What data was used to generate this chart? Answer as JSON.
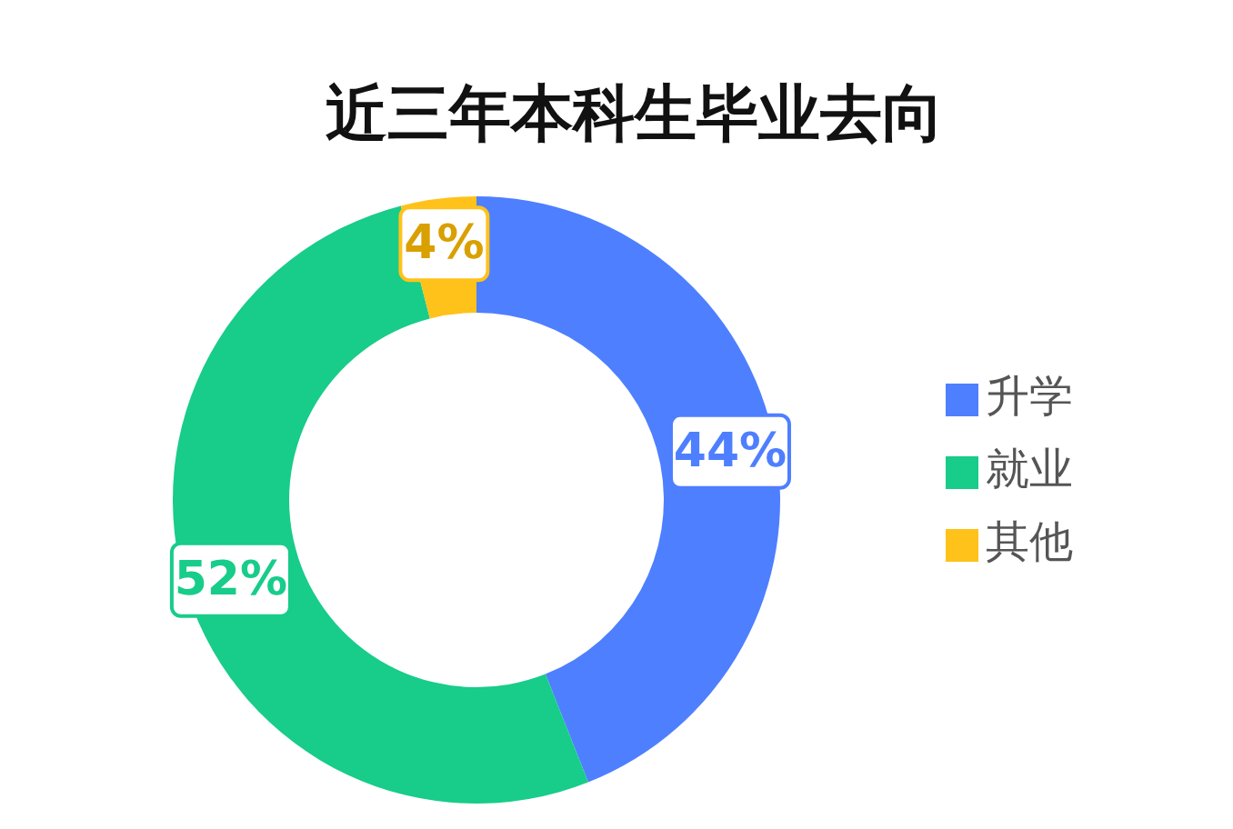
{
  "chart_data": {
    "type": "donut",
    "title": "近三年本科生毕业去向",
    "categories": [
      "升学",
      "就业",
      "其他"
    ],
    "values": [
      44,
      52,
      4
    ],
    "value_labels": [
      "44%",
      "52%",
      "4%"
    ],
    "colors": [
      "#4e7fff",
      "#18cc8a",
      "#ffc21a"
    ],
    "legend": "right"
  }
}
